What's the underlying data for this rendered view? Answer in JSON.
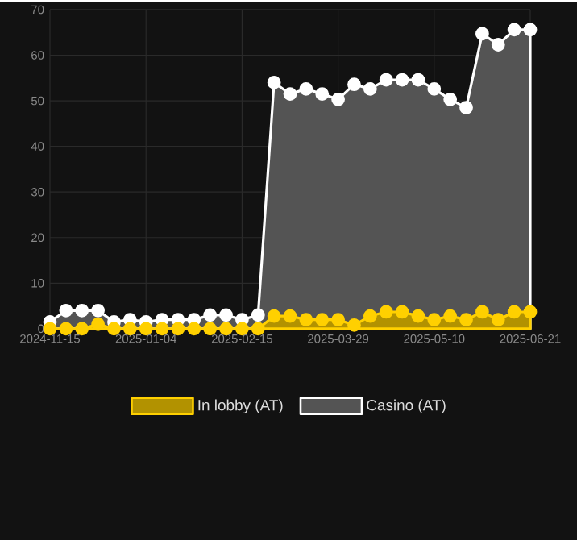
{
  "chart_data": {
    "type": "area",
    "categories": [
      "2024-11-15",
      null,
      null,
      null,
      null,
      null,
      "2025-01-04",
      null,
      null,
      null,
      null,
      null,
      "2025-02-15",
      null,
      null,
      null,
      null,
      null,
      "2025-03-29",
      null,
      null,
      null,
      null,
      null,
      "2025-05-10",
      null,
      null,
      null,
      null,
      null,
      "2025-06-21"
    ],
    "series": [
      {
        "name": "In lobby (AT)",
        "color": "#ffd000",
        "values": [
          0,
          0,
          0,
          1,
          0,
          0,
          0,
          0,
          0,
          0,
          0,
          0,
          0,
          0,
          2.8,
          2.8,
          2,
          2,
          2,
          0.8,
          2.8,
          3.7,
          3.7,
          2.8,
          2,
          2.8,
          2,
          3.7,
          2,
          3.7,
          3.7
        ]
      },
      {
        "name": "Casino (AT)",
        "color": "#ffffff",
        "values": [
          1.5,
          4,
          4,
          4,
          1.5,
          2,
          1.5,
          2,
          2,
          2,
          3,
          3,
          2,
          3,
          54,
          51.5,
          52.6,
          51.5,
          50.3,
          53.6,
          52.6,
          54.6,
          54.6,
          54.6,
          52.6,
          50.3,
          48.5,
          64.7,
          62.3,
          65.6,
          65.6
        ]
      }
    ],
    "ylim": [
      0,
      70
    ],
    "yticks": [
      0,
      10,
      20,
      30,
      40,
      50,
      60,
      70
    ],
    "grid": true,
    "legend": "bottom",
    "marker": "circle"
  }
}
